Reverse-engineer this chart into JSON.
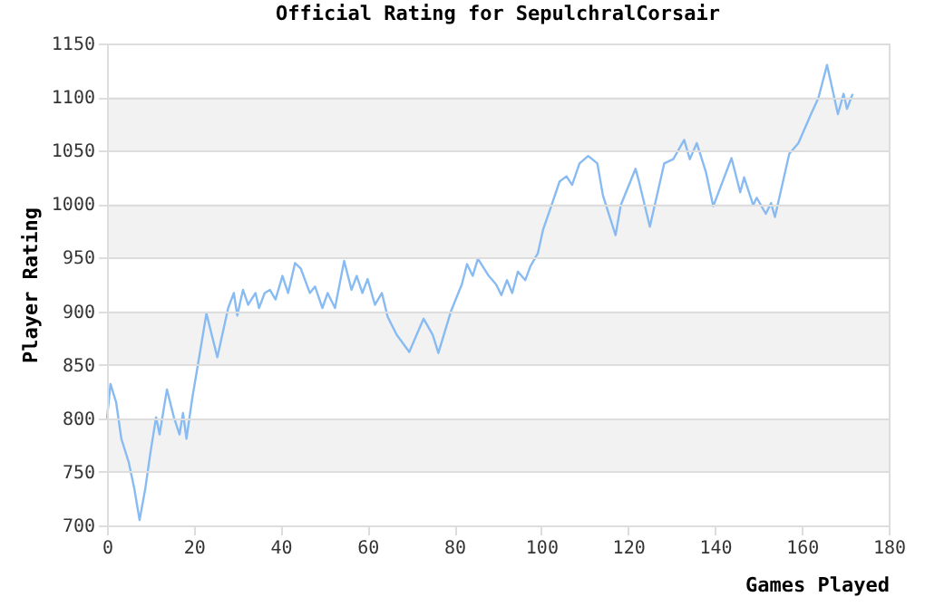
{
  "chart_data": {
    "type": "line",
    "title": "Official Rating for SepulchralCorsair",
    "xlabel": "Games Played",
    "ylabel": "Player Rating",
    "xlim": [
      0,
      180
    ],
    "xticks": [
      0,
      20,
      40,
      60,
      80,
      100,
      120,
      140,
      160,
      180
    ],
    "ylim": [
      700,
      1150
    ],
    "yticks": [
      700,
      750,
      800,
      850,
      900,
      950,
      1000,
      1050,
      1100,
      1150
    ],
    "grid": "y",
    "marker": "none",
    "line_style": "solid",
    "bands": [
      {
        "axis": "y",
        "from": 750,
        "to": 800,
        "color": "#f2f2f2"
      },
      {
        "axis": "y",
        "from": 850,
        "to": 900,
        "color": "#f2f2f2"
      },
      {
        "axis": "y",
        "from": 950,
        "to": 1000,
        "color": "#f2f2f2"
      },
      {
        "axis": "y",
        "from": 1050,
        "to": 1100,
        "color": "#f2f2f2"
      }
    ],
    "series": [
      {
        "color": "#88bbf2",
        "x": [
          0,
          0.8,
          2.1,
          3.3,
          5,
          6.3,
          7.5,
          8.8,
          10,
          11.3,
          12.1,
          13.8,
          15.4,
          16.7,
          17.5,
          18.3,
          19.6,
          21.3,
          22.9,
          25.4,
          27.9,
          29.2,
          30,
          31.3,
          32.5,
          34.2,
          35,
          36.3,
          37.5,
          38.8,
          40.4,
          41.7,
          43.3,
          44.6,
          46.7,
          47.9,
          49.6,
          50.8,
          52.5,
          54.6,
          56.3,
          57.5,
          58.8,
          60,
          61.7,
          63.3,
          64.6,
          66.7,
          69.6,
          72.9,
          75,
          76.3,
          79.2,
          81.7,
          82.9,
          84.2,
          85.4,
          87.9,
          89.6,
          90.8,
          92.1,
          93.3,
          94.6,
          96.3,
          97.5,
          99.2,
          100.4,
          102.1,
          104.2,
          105.8,
          107.1,
          108.8,
          110.8,
          112.9,
          114.2,
          117.1,
          118.3,
          121.7,
          122.5,
          125,
          128.3,
          130.4,
          132.9,
          134.2,
          135.8,
          137.9,
          139.6,
          143.8,
          145.8,
          146.7,
          148.8,
          149.6,
          151.7,
          152.9,
          153.8,
          157.1,
          159.2,
          162.1,
          163.8,
          165.8,
          168.3,
          169.6,
          170.4,
          171.7
        ],
        "values": [
          800,
          832,
          815,
          781,
          759,
          734,
          705,
          734,
          768,
          801,
          785,
          827,
          801,
          785,
          805,
          781,
          818,
          859,
          898,
          857,
          903,
          917,
          896,
          920,
          906,
          917,
          903,
          917,
          920,
          911,
          933,
          917,
          945,
          940,
          917,
          923,
          903,
          917,
          903,
          947,
          920,
          933,
          917,
          930,
          906,
          917,
          895,
          878,
          862,
          893,
          878,
          861,
          900,
          925,
          944,
          933,
          949,
          933,
          925,
          915,
          929,
          917,
          937,
          929,
          942,
          954,
          976,
          996,
          1021,
          1026,
          1018,
          1038,
          1045,
          1038,
          1008,
          971,
          999,
          1033,
          1021,
          979,
          1038,
          1042,
          1060,
          1042,
          1057,
          1030,
          998,
          1043,
          1011,
          1025,
          999,
          1006,
          991,
          1001,
          988,
          1047,
          1057,
          1084,
          1099,
          1130,
          1084,
          1103,
          1089,
          1103
        ]
      }
    ]
  }
}
